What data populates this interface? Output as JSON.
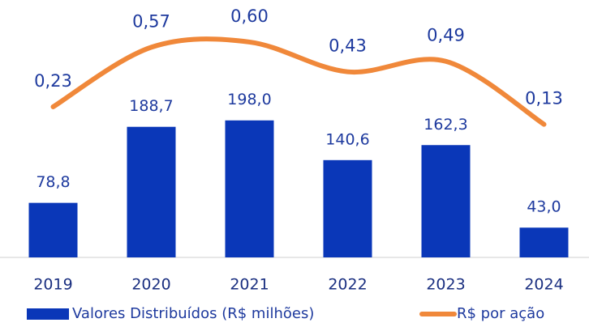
{
  "chart_data": {
    "type": "bar+line",
    "categories": [
      "2019",
      "2020",
      "2021",
      "2022",
      "2023",
      "2024"
    ],
    "series": [
      {
        "name": "Valores Distribuídos (R$ milhões)",
        "type": "bar",
        "color": "#0a37b8",
        "values": [
          78.8,
          188.7,
          198.0,
          140.6,
          162.3,
          43.0
        ],
        "value_labels": [
          "78,8",
          "188,7",
          "198,0",
          "140,6",
          "162,3",
          "43,0"
        ]
      },
      {
        "name": "R$ por ação",
        "type": "line",
        "axis": "y2",
        "color": "#f0883a",
        "values": [
          0.23,
          0.57,
          0.6,
          0.43,
          0.49,
          0.13
        ],
        "value_labels": [
          "0,23",
          "0,57",
          "0,60",
          "0,43",
          "0,49",
          "0,13"
        ]
      }
    ],
    "ylim": [
      0,
      372
    ],
    "y2lim": [
      -0.63,
      0.84
    ],
    "legend": "bottom"
  }
}
